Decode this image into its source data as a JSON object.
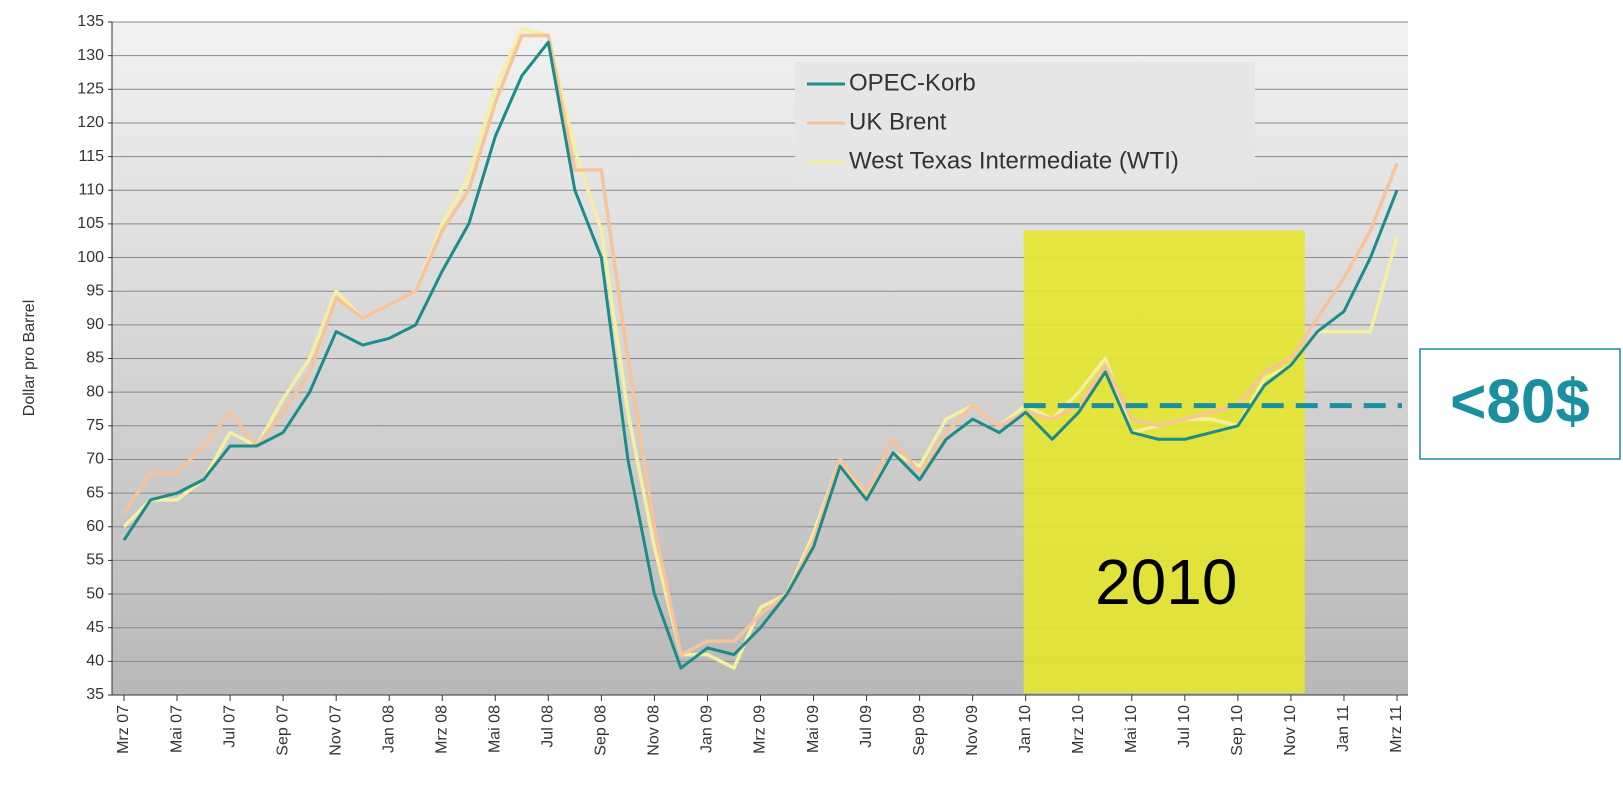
{
  "chart_data": {
    "type": "line",
    "ylabel": "Dollar pro Barrel",
    "categories": [
      "Mrz 07",
      null,
      "Mai 07",
      null,
      "Jul 07",
      null,
      "Sep 07",
      null,
      "Nov 07",
      null,
      "Jan 08",
      null,
      "Mrz 08",
      null,
      "Mai 08",
      null,
      "Jul 08",
      null,
      "Sep 08",
      null,
      "Nov 08",
      null,
      "Jan 09",
      null,
      "Mrz 09",
      null,
      "Mai 09",
      null,
      "Jul 09",
      null,
      "Sep 09",
      null,
      "Nov 09",
      null,
      "Jan 10",
      null,
      "Mrz 10",
      null,
      "Mai 10",
      null,
      "Jul 10",
      null,
      "Sep 10",
      null,
      "Nov 10",
      null,
      "Jan 11",
      null,
      "Mrz 11"
    ],
    "series": [
      {
        "name": "OPEC-Korb",
        "color": "#1b8c88",
        "values": [
          58,
          64,
          65,
          67,
          72,
          72,
          74,
          80,
          89,
          87,
          88,
          90,
          98,
          105,
          118,
          127,
          132,
          110,
          100,
          70,
          50,
          39,
          42,
          41,
          45,
          50,
          57,
          69,
          64,
          71,
          67,
          73,
          76,
          74,
          77,
          73,
          77,
          83,
          74,
          73,
          73,
          74,
          75,
          81,
          84,
          89,
          92,
          100,
          110
        ]
      },
      {
        "name": "UK Brent",
        "color": "#f6c39a",
        "values": [
          62,
          68,
          68,
          72,
          77,
          72,
          77,
          83,
          94,
          91,
          93,
          95,
          104,
          110,
          123,
          133,
          133,
          113,
          113,
          85,
          60,
          41,
          43,
          43,
          47,
          50,
          58,
          70,
          65,
          73,
          68,
          74,
          78,
          75,
          77,
          76,
          78,
          84,
          76,
          75,
          76,
          77,
          78,
          83,
          85,
          91,
          97,
          104,
          114
        ]
      },
      {
        "name": "West Texas Intermediate (WTI)",
        "color": "#f4f0a2",
        "values": [
          60,
          64,
          64,
          67,
          74,
          72,
          79,
          85,
          95,
          91,
          93,
          95,
          105,
          112,
          125,
          134,
          133,
          116,
          104,
          77,
          57,
          41,
          41,
          39,
          48,
          50,
          59,
          70,
          64,
          71,
          69,
          76,
          78,
          75,
          78,
          76,
          80,
          85,
          74,
          75,
          76,
          76,
          75,
          82,
          84,
          89,
          89,
          89,
          103
        ]
      }
    ],
    "ylim": [
      35,
      135
    ],
    "yticks": [
      35,
      40,
      45,
      50,
      55,
      60,
      65,
      70,
      75,
      80,
      85,
      90,
      95,
      100,
      105,
      110,
      115,
      120,
      125,
      130,
      135
    ],
    "grid": true,
    "legend": "top",
    "highlight": {
      "label": "2010",
      "start": "Jan 10",
      "end": "Nov 10",
      "ymax": 104,
      "color": "#e6e62e"
    },
    "threshold": {
      "value": 78,
      "label": "<80$",
      "color": "#1a8fa0"
    }
  }
}
